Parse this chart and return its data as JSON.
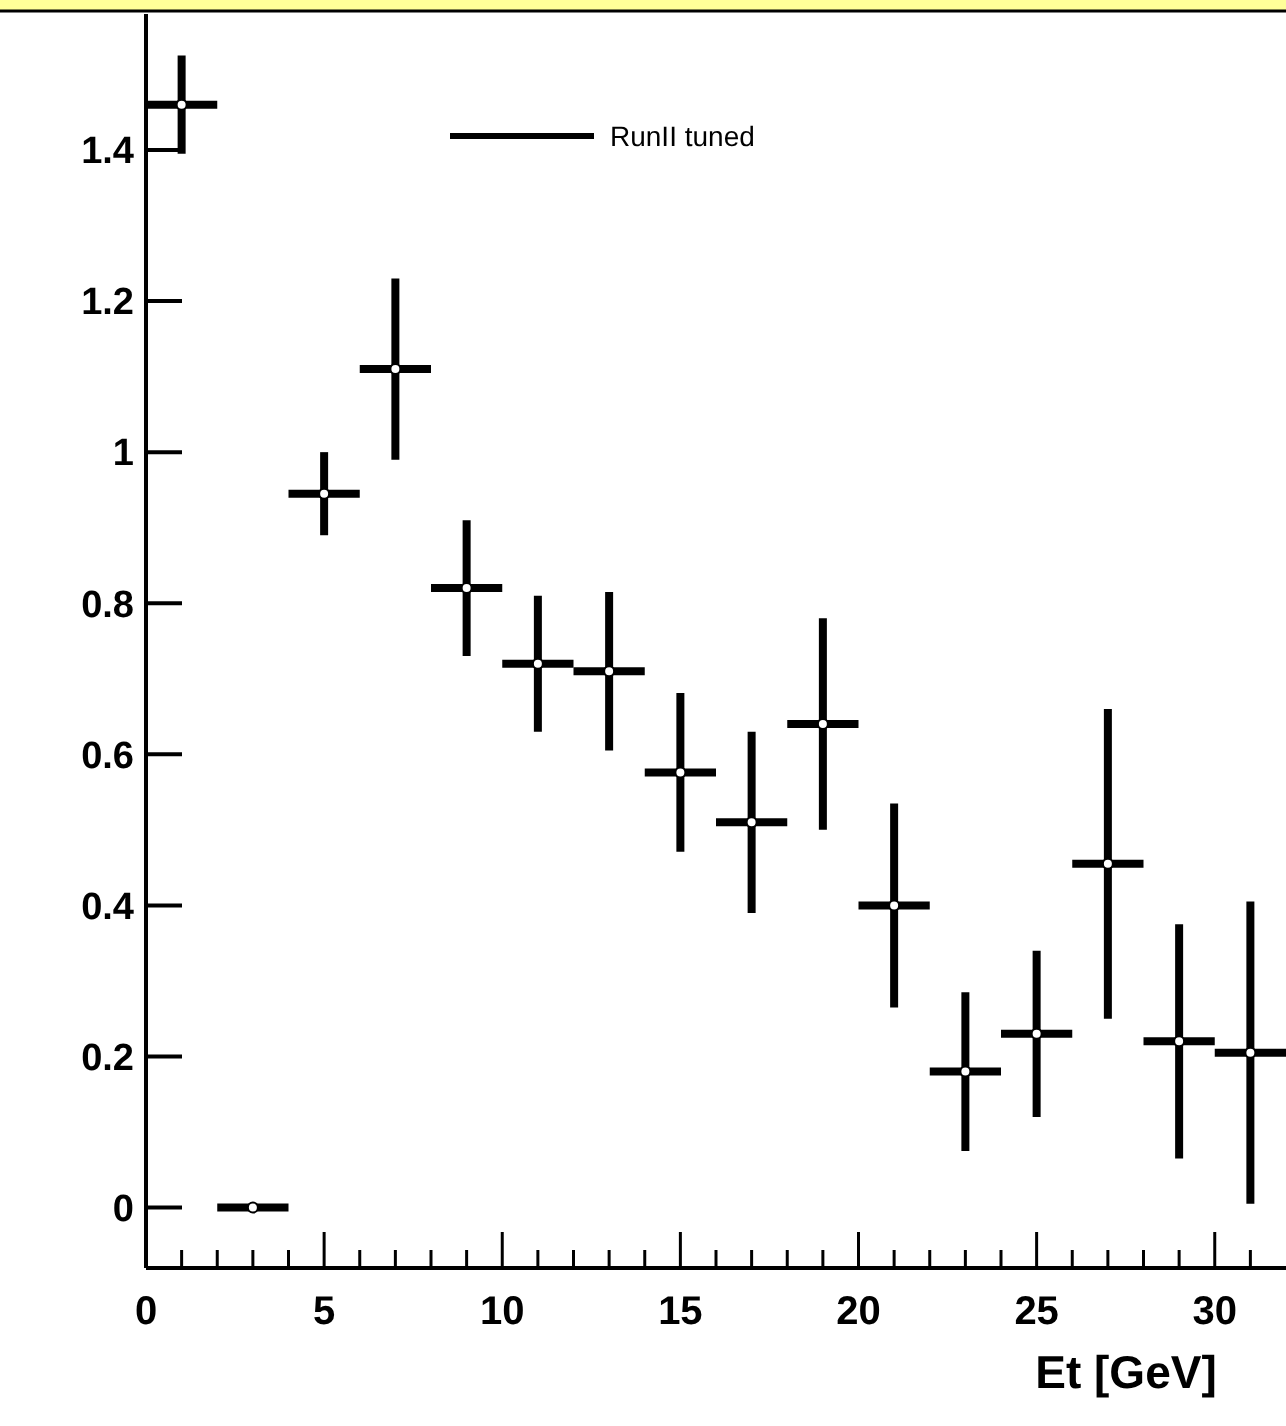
{
  "chart_data": {
    "type": "scatter",
    "xlabel": "Et [GeV]",
    "x": [
      1,
      3,
      5,
      7,
      9,
      11,
      13,
      15,
      17,
      19,
      21,
      23,
      25,
      27,
      29,
      31
    ],
    "series": [
      {
        "name": "RunII tuned",
        "color": "#000000",
        "values": [
          1.46,
          0,
          0.945,
          1.11,
          0.82,
          0.72,
          0.71,
          0.576,
          0.51,
          0.64,
          0.4,
          0.18,
          0.23,
          0.455,
          0.22,
          0.205
        ],
        "errors": [
          0.065,
          null,
          0.055,
          0.12,
          0.09,
          0.09,
          0.105,
          0.105,
          0.12,
          0.14,
          0.135,
          0.105,
          0.11,
          0.205,
          0.155,
          0.2
        ],
        "xerrors": [
          1,
          1,
          1,
          1,
          1,
          1,
          1,
          1,
          1,
          1,
          1,
          1,
          1,
          1,
          1,
          1
        ]
      }
    ],
    "xlim": [
      0,
      32
    ],
    "ylim": [
      -0.08,
      1.58
    ],
    "xticks": [
      0,
      {
        "value": 1,
        "label": null
      },
      {
        "value": 2,
        "label": null
      },
      {
        "value": 3,
        "label": null
      },
      {
        "value": 4,
        "label": null
      },
      5,
      {
        "value": 6,
        "label": null
      },
      {
        "value": 7,
        "label": null
      },
      {
        "value": 8,
        "label": null
      },
      {
        "value": 9,
        "label": null
      },
      10,
      {
        "value": 11,
        "label": null
      },
      {
        "value": 12,
        "label": null
      },
      {
        "value": 13,
        "label": null
      },
      {
        "value": 14,
        "label": null
      },
      15,
      {
        "value": 16,
        "label": null
      },
      {
        "value": 17,
        "label": null
      },
      {
        "value": 18,
        "label": null
      },
      {
        "value": 19,
        "label": null
      },
      20,
      {
        "value": 21,
        "label": null
      },
      {
        "value": 22,
        "label": null
      },
      {
        "value": 23,
        "label": null
      },
      {
        "value": 24,
        "label": null
      },
      25,
      {
        "value": 26,
        "label": null
      },
      {
        "value": 27,
        "label": null
      },
      {
        "value": 28,
        "label": null
      },
      {
        "value": 29,
        "label": null
      },
      30,
      {
        "value": 31,
        "label": null
      }
    ],
    "yticks": [
      0,
      0.2,
      0.4,
      0.6,
      0.8,
      1,
      1.2,
      1.4
    ],
    "legend": "top right",
    "marker": "circle",
    "grid": false
  }
}
